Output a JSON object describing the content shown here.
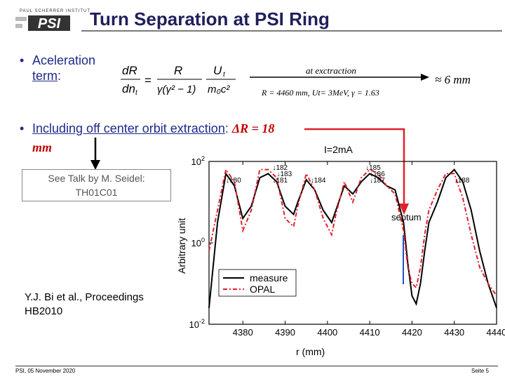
{
  "logo": {
    "institute": "PAUL SCHERRER INSTITUT",
    "mark": "PSI"
  },
  "title": "Turn Separation at PSI Ring",
  "bullet1": {
    "label": "Aceleration",
    "label2": "term",
    "colon": ":"
  },
  "formula": {
    "lhs_num": "dR",
    "lhs_den": "dn",
    "eq": "=",
    "mid_num": "R",
    "mid_den": "γ(γ² − 1)",
    "rhs_num": "U",
    "rhs_den": "m₀c²",
    "sub": "t"
  },
  "arrow": {
    "label": "at exctraction",
    "params": "R = 4460 mm,  Ut= 3MeV,  γ = 1.63"
  },
  "result": "≈ 6 mm",
  "bullet2": {
    "text": "Including off center orbit extraction",
    "colon": ":",
    "dr_label": "ΔR = 18",
    "dr_unit": "mm"
  },
  "talk_box": {
    "line1": "See Talk by M. Seidel:",
    "line2": "TH01C01"
  },
  "reference": "Y.J. Bi et al., Proceedings HB2010",
  "footer": {
    "left": "PSI, 05 November 2020",
    "right": "Seite 5"
  },
  "chart_data": {
    "type": "line",
    "title": "I=2mA",
    "xlabel": "r (mm)",
    "ylabel": "Arbitrary unit",
    "xlim": [
      4372,
      4440
    ],
    "ylim_log10": [
      -2,
      2
    ],
    "yscale": "log",
    "xticks": [
      4380,
      4390,
      4400,
      4410,
      4420,
      4430,
      4440
    ],
    "ytick_labels": [
      "10^2",
      "10^0",
      "10^-2"
    ],
    "legend": [
      "measure",
      "OPAL"
    ],
    "legend_position": "lower-left",
    "septum_label": "septum",
    "turn_labels": [
      {
        "label": "↓180",
        "r": 4376,
        "tier": 2
      },
      {
        "label": "↓182",
        "r": 4387,
        "tier": 0
      },
      {
        "label": "↓183",
        "r": 4388,
        "tier": 1
      },
      {
        "label": "↓181",
        "r": 4387,
        "tier": 2
      },
      {
        "label": "↓184",
        "r": 4396,
        "tier": 2
      },
      {
        "label": "↓185",
        "r": 4409,
        "tier": 0
      },
      {
        "label": "↓186",
        "r": 4410,
        "tier": 1
      },
      {
        "label": "↓187",
        "r": 4410,
        "tier": 2
      },
      {
        "label": "↓188",
        "r": 4430,
        "tier": 2
      }
    ],
    "series": [
      {
        "name": "measure",
        "color": "#000000",
        "x": [
          4372,
          4374,
          4376,
          4378,
          4380,
          4382,
          4384,
          4386,
          4388,
          4390,
          4392,
          4393,
          4395,
          4397,
          4399,
          4401,
          4402,
          4404,
          4406,
          4408,
          4410,
          4412,
          4414,
          4416,
          4418,
          4419,
          4420,
          4421,
          4422,
          4423,
          4424,
          4426,
          4428,
          4430,
          4432,
          4434,
          4436,
          4438,
          4440
        ],
        "log10_y": [
          -1.6,
          0.5,
          1.7,
          1.4,
          0.6,
          0.9,
          1.6,
          1.7,
          1.5,
          0.9,
          0.7,
          1.0,
          1.55,
          1.3,
          0.8,
          0.5,
          0.8,
          1.4,
          1.2,
          1.5,
          1.7,
          1.6,
          1.4,
          1.3,
          0.5,
          -0.5,
          -1.3,
          -1.5,
          -1.0,
          -0.2,
          0.5,
          1.0,
          1.6,
          1.8,
          1.5,
          0.8,
          -0.2,
          -1.0,
          -1.6
        ]
      },
      {
        "name": "OPAL",
        "color": "#e0202a",
        "x": [
          4372,
          4374,
          4376,
          4378,
          4380,
          4382,
          4384,
          4386,
          4388,
          4390,
          4392,
          4393,
          4395,
          4397,
          4399,
          4401,
          4402,
          4404,
          4406,
          4408,
          4410,
          4412,
          4414,
          4416,
          4418,
          4419,
          4420,
          4421,
          4422,
          4423,
          4424,
          4426,
          4428,
          4430,
          4432,
          4434,
          4436,
          4438,
          4440
        ],
        "log10_y": [
          -0.2,
          0.8,
          1.8,
          1.5,
          0.3,
          0.8,
          1.8,
          1.8,
          1.6,
          0.6,
          0.4,
          0.9,
          1.7,
          1.3,
          0.6,
          0.2,
          0.7,
          1.5,
          1.0,
          1.6,
          1.8,
          1.7,
          1.4,
          1.2,
          0.3,
          -0.6,
          -1.0,
          -1.1,
          -0.6,
          0.2,
          0.8,
          1.3,
          1.7,
          1.7,
          1.1,
          0.2,
          -0.6,
          -1.0,
          -1.3
        ]
      }
    ]
  }
}
